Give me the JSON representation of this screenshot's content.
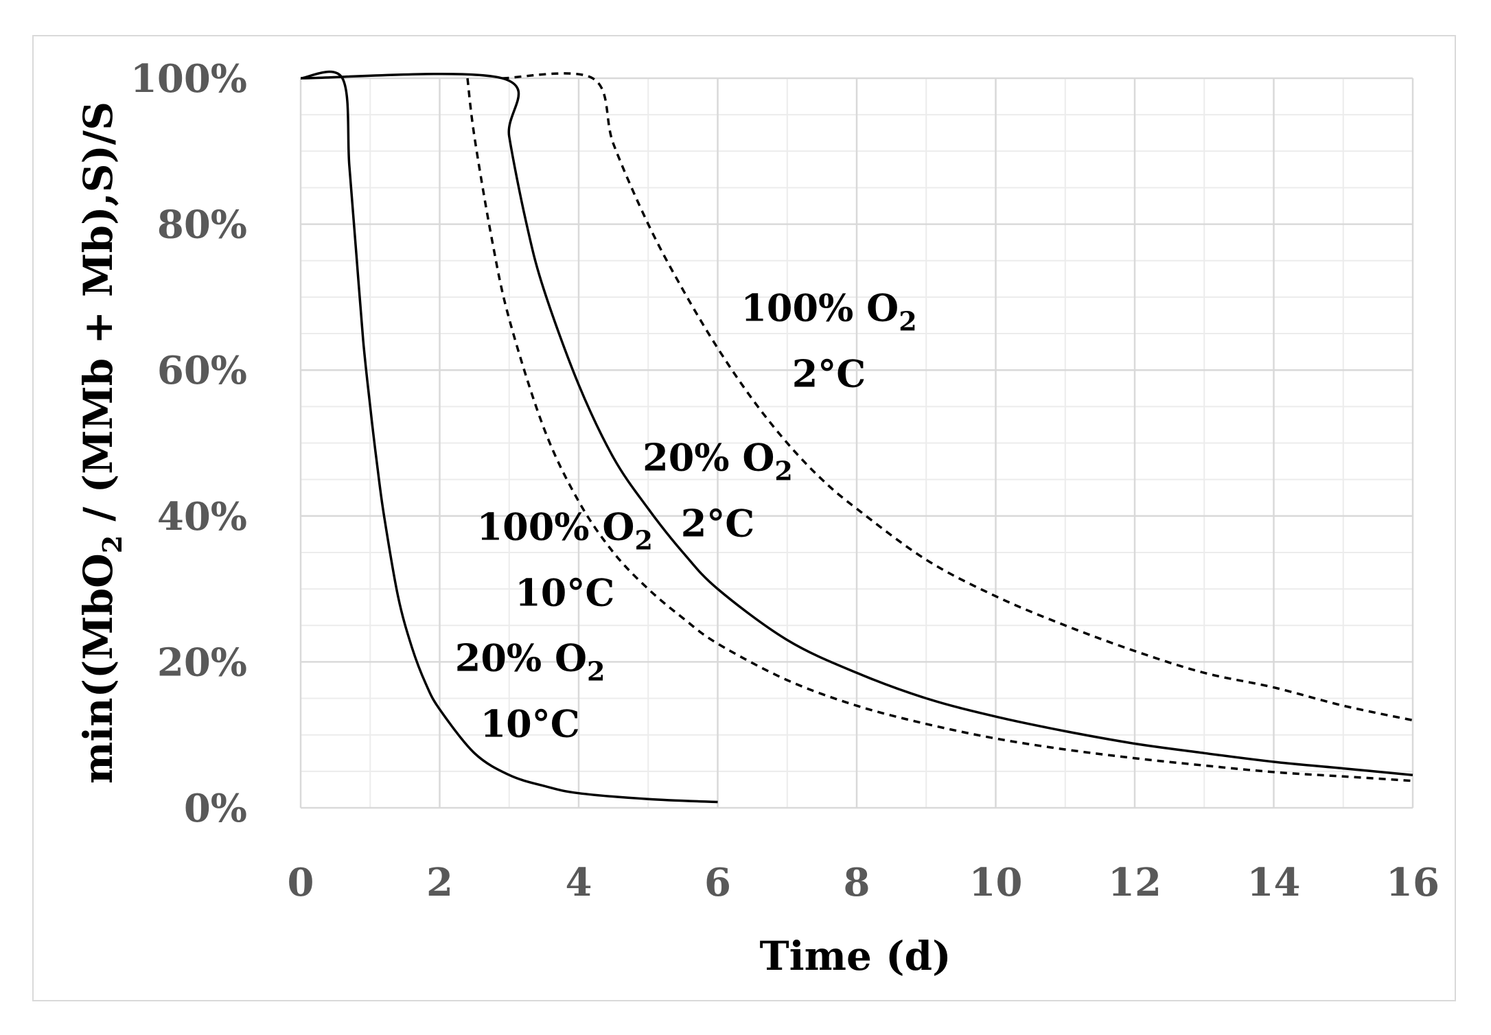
{
  "chart_data": {
    "type": "line",
    "title": "",
    "xlabel": "Time (d)",
    "ylabel": {
      "prefix": "min((MbO",
      "sub": "2",
      "suffix": " / (MMb + Mb),S)/S"
    },
    "xlim": [
      0,
      16
    ],
    "ylim": [
      0,
      100
    ],
    "x_ticks": [
      0,
      2,
      4,
      6,
      8,
      10,
      12,
      14,
      16
    ],
    "y_ticks": [
      0,
      20,
      40,
      60,
      80,
      100
    ],
    "y_tick_labels": [
      "0%",
      "20%",
      "40%",
      "60%",
      "80%",
      "100%"
    ],
    "x_minor_step": 1,
    "y_minor_step": 5,
    "grid": true,
    "legend": "none",
    "series": [
      {
        "name": "20% O2, 10°C",
        "style": "solid",
        "x": [
          0.0,
          0.6,
          0.7,
          0.8,
          0.9,
          1.0,
          1.1,
          1.2,
          1.4,
          1.6,
          1.8,
          2.0,
          2.5,
          3.0,
          3.5,
          4.0,
          5.0,
          6.0
        ],
        "y": [
          100,
          100,
          88,
          76,
          64,
          55,
          47,
          40,
          29,
          22,
          17,
          13.5,
          7.5,
          4.5,
          3.0,
          2.0,
          1.2,
          0.8
        ]
      },
      {
        "name": "100% O2, 10°C",
        "style": "dashed",
        "x": [
          2.4,
          2.5,
          2.75,
          3.0,
          3.5,
          4.0,
          4.5,
          5.0,
          5.5,
          6.0,
          7.0,
          8.0,
          9.0,
          10.0,
          11.0,
          12.0,
          13.0,
          14.0,
          15.0,
          16.0
        ],
        "y": [
          100,
          92,
          78,
          67,
          52,
          42,
          35,
          30,
          26,
          22.5,
          17.5,
          14,
          11.5,
          9.5,
          8,
          6.8,
          5.8,
          4.9,
          4.3,
          3.7
        ]
      },
      {
        "name": "20% O2, 2°C",
        "style": "solid",
        "x": [
          0.0,
          2.9,
          3.0,
          3.25,
          3.5,
          4.0,
          4.5,
          5.0,
          5.5,
          6.0,
          7.0,
          8.0,
          9.0,
          10.0,
          11.0,
          12.0,
          13.0,
          14.0,
          15.0,
          16.0
        ],
        "y": [
          100,
          100,
          92,
          80,
          71,
          58,
          48,
          41,
          35,
          30,
          23,
          18.5,
          15,
          12.5,
          10.5,
          8.8,
          7.5,
          6.3,
          5.4,
          4.5
        ]
      },
      {
        "name": "100% O2, 2°C",
        "style": "dashed",
        "x": [
          2.9,
          4.2,
          4.5,
          5.0,
          5.5,
          6.0,
          6.5,
          7.0,
          7.5,
          8.0,
          9.0,
          10.0,
          11.0,
          12.0,
          13.0,
          14.0,
          15.0,
          16.0
        ],
        "y": [
          100,
          100,
          91,
          80,
          71,
          63,
          56,
          50,
          45,
          41,
          34,
          29,
          25,
          21.5,
          18.5,
          16.5,
          14,
          12
        ]
      }
    ],
    "annotations": [
      {
        "name": "100% O2 2°C",
        "line1": "100% O",
        "sub": "2",
        "line2": "2°C",
        "at": [
          7.6,
          66
        ]
      },
      {
        "name": "20% O2 2°C",
        "line1": "20% O",
        "sub": "2",
        "line2": "2°C",
        "at": [
          6.0,
          45.5
        ]
      },
      {
        "name": "100% O2 10°C",
        "line1": "100% O",
        "sub": "2",
        "line2": "10°C",
        "at": [
          3.8,
          36
        ]
      },
      {
        "name": "20% O2 10°C",
        "line1": "20% O",
        "sub": "2",
        "line2": "10°C",
        "at": [
          3.3,
          18
        ]
      }
    ],
    "colors": {
      "line": "#000000",
      "grid_major": "#d9d9d9",
      "grid_minor": "#ececec",
      "tick": "#595959"
    }
  }
}
